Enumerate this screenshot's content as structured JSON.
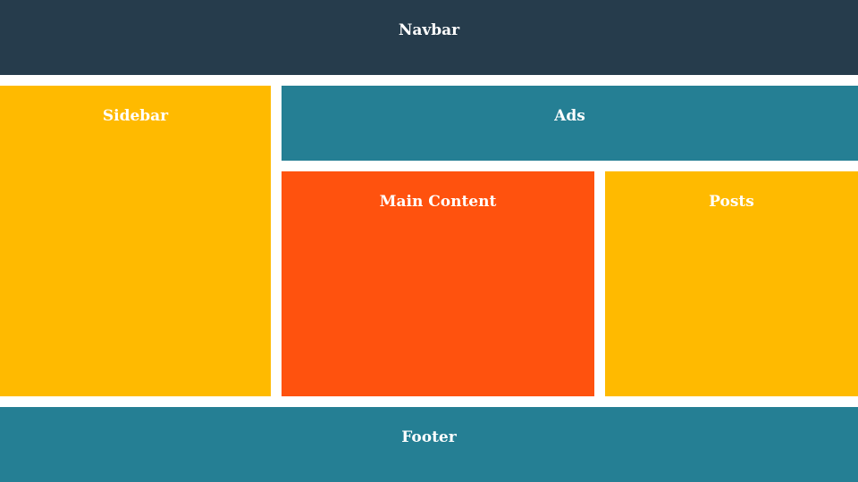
{
  "blocks": {
    "navbar": {
      "label": "Navbar",
      "color": "#263C4C"
    },
    "sidebar": {
      "label": "Sidebar",
      "color": "#FFBA00"
    },
    "ads": {
      "label": "Ads",
      "color": "#257F94"
    },
    "main": {
      "label": "Main Content",
      "color": "#FF520E"
    },
    "posts": {
      "label": "Posts",
      "color": "#FFBA00"
    },
    "footer": {
      "label": "Footer",
      "color": "#257F94"
    }
  }
}
